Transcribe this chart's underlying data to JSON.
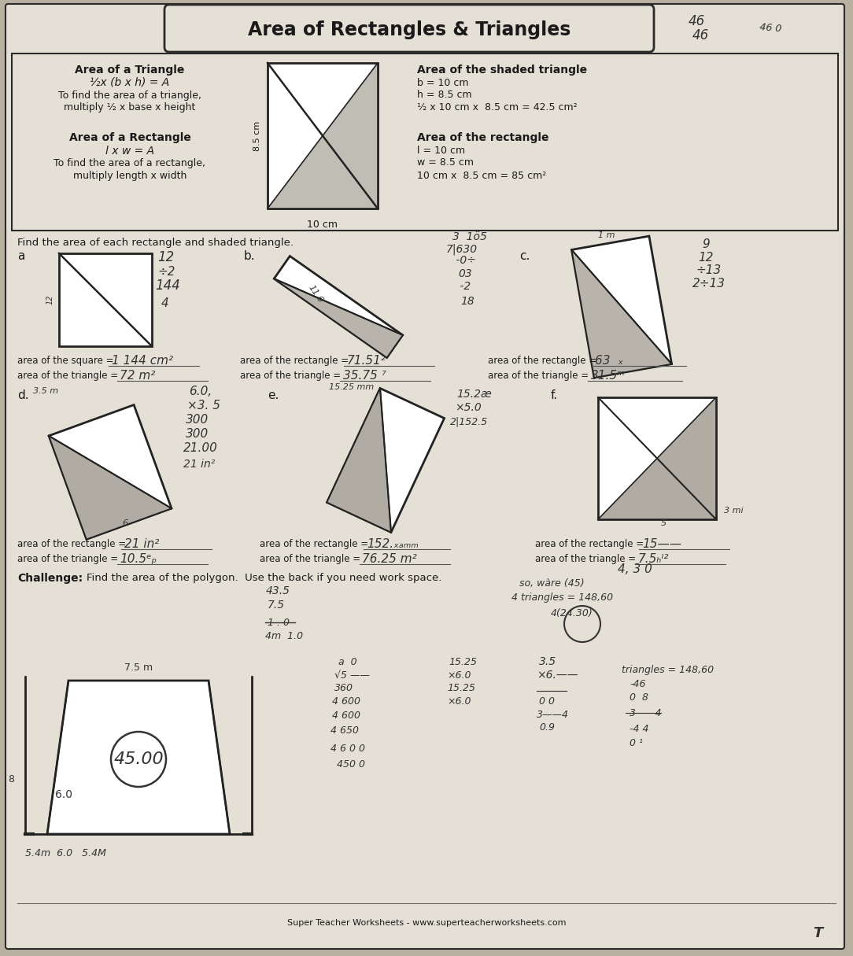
{
  "title": "Area of Rectangles & Triangles",
  "bg_color": "#b8b0a0",
  "paper_color": "#e5e0d5",
  "border_color": "#2a2a2a",
  "text_color": "#1a1a1a",
  "hw_color": "#333333",
  "hw_dark": "#222222",
  "header": {
    "tri_title": "Area of a Triangle",
    "tri_formula": "½x (b x h) = A",
    "tri_desc1": "To find the area of a triangle,",
    "tri_desc2": "multiply ½ x base x height",
    "rect_title": "Area of a Rectangle",
    "rect_formula": "l x w = A",
    "rect_desc1": "To find the area of a rectangle,",
    "rect_desc2": "multiply length x width",
    "ex_tri_title": "Area of the shaded triangle",
    "ex_b": "b = 10 cm",
    "ex_h": "h = 8.5 cm",
    "ex_tri_calc": "½ x 10 cm x  8.5 cm = 42.5 cm²",
    "ex_rect_title": "Area of the rectangle",
    "ex_l": "l = 10 cm",
    "ex_w": "w = 8.5 cm",
    "ex_rect_calc": "10 cm x  8.5 cm = 85 cm²",
    "fig_label": "10 cm"
  },
  "instr": "Find the area of each rectangle and shaded triangle.",
  "footer": "Super Teacher Worksheets - www.superteacherworksheets.com"
}
